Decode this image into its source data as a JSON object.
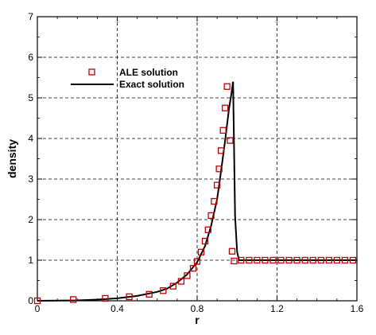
{
  "chart_data": {
    "type": "scatter",
    "xlabel": "r",
    "ylabel": "density",
    "xlim": [
      0,
      1.6
    ],
    "ylim": [
      0,
      7
    ],
    "xticks": [
      "0",
      "0.4",
      "0.8",
      "1.2",
      "1.6"
    ],
    "yticks": [
      "0",
      "1",
      "2",
      "3",
      "4",
      "5",
      "6",
      "7"
    ],
    "grid": true,
    "legend": {
      "position": "upper-left"
    },
    "colors": {
      "ale": "#c00000",
      "exact": "#000000",
      "grid": "#000000"
    },
    "series": [
      {
        "name": "ALE solution",
        "kind": "markers",
        "marker": "square",
        "x": [
          0.0,
          0.18,
          0.34,
          0.46,
          0.56,
          0.63,
          0.68,
          0.72,
          0.75,
          0.78,
          0.8,
          0.82,
          0.84,
          0.855,
          0.87,
          0.885,
          0.9,
          0.91,
          0.92,
          0.93,
          0.94,
          0.95,
          0.965,
          0.975,
          0.985,
          1.02,
          1.06,
          1.1,
          1.14,
          1.18,
          1.22,
          1.26,
          1.3,
          1.34,
          1.38,
          1.42,
          1.46,
          1.5,
          1.54,
          1.58
        ],
        "y": [
          0.0,
          0.03,
          0.06,
          0.1,
          0.16,
          0.25,
          0.36,
          0.48,
          0.62,
          0.8,
          0.97,
          1.2,
          1.47,
          1.75,
          2.1,
          2.45,
          2.85,
          3.25,
          3.7,
          4.2,
          4.75,
          5.28,
          3.95,
          1.22,
          0.98,
          1.0,
          1.0,
          1.0,
          1.0,
          1.0,
          1.0,
          1.0,
          1.0,
          1.0,
          1.0,
          1.0,
          1.0,
          1.0,
          1.0,
          1.0
        ]
      },
      {
        "name": "Exact solution",
        "kind": "line",
        "x": [
          0.0,
          0.2,
          0.3,
          0.4,
          0.5,
          0.6,
          0.65,
          0.7,
          0.75,
          0.8,
          0.84,
          0.87,
          0.9,
          0.92,
          0.94,
          0.96,
          0.97,
          0.98,
          0.99,
          1.0,
          1.01,
          1.6
        ],
        "y": [
          0.0,
          0.01,
          0.03,
          0.06,
          0.12,
          0.22,
          0.3,
          0.45,
          0.65,
          0.95,
          1.35,
          1.85,
          2.5,
          3.2,
          3.95,
          4.75,
          5.05,
          5.4,
          2.1,
          1.2,
          1.0,
          1.0
        ]
      }
    ]
  }
}
